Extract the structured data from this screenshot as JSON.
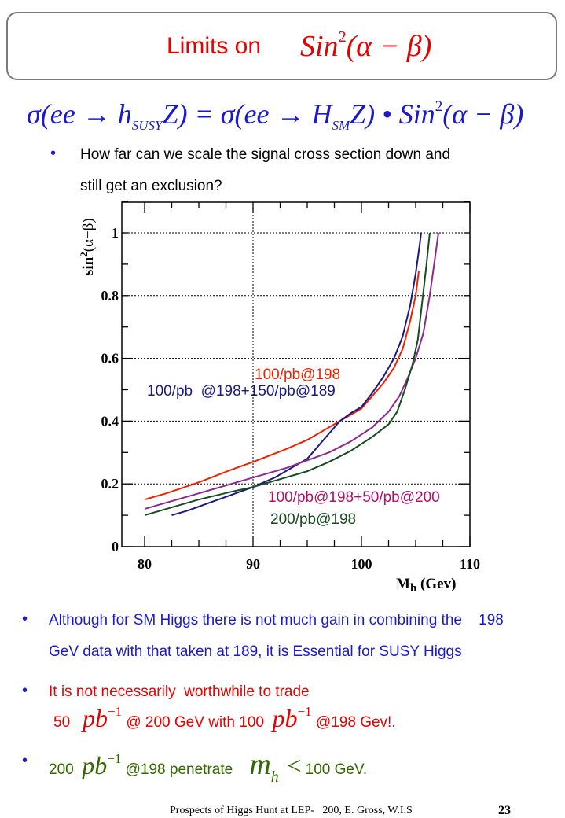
{
  "slide": {
    "title_text": "Limits on",
    "title_math": "Sin",
    "title_math_sup": "2",
    "title_math_arg": "(α − β)",
    "formula": {
      "part1": "σ(ee → h",
      "sub1": "SUSY",
      "part2": "Z) = σ(ee → H",
      "sub2": "SM",
      "part3": "Z) • Sin",
      "sup3": "2",
      "part4": "(α − β)"
    },
    "intro_bullet_line1": "How far can we scale the signal cross section down and",
    "intro_bullet_line2": "still get an exclusion?",
    "bullets": [
      {
        "line1": "Although for SM Higgs there is not much gain in combining the    198",
        "line2": "GeV data with that taken at  189, it is Essential for SUSY Higgs"
      },
      {
        "line1": "It is not necessarily  worthwhile to trade",
        "line2_a": "50",
        "line2_unit": "pb",
        "line2_unit_sup": "−1",
        "line2_b": "@ 200 GeV with  100",
        "line2_c": "@198 Gev!."
      },
      {
        "a": "200",
        "unit": "pb",
        "unit_sup": "−1",
        "b": "@198 penetrate",
        "mh": "m",
        "mh_sub": "h",
        "lt": "<",
        "c": "100 GeV."
      }
    ],
    "bullet_glyph": "•",
    "footer": "Prospects of Higgs Hunt at LEP-   200, E. Gross, W.I.S",
    "page_number": "23",
    "colors": {
      "title_red": "#e60000",
      "formula_blue": "#1a1acc",
      "bullet_green": "#336600"
    }
  },
  "chart_data": {
    "type": "line",
    "title": "",
    "xlabel": "M",
    "xlabel_sub": "h",
    "xlabel_unit": " (Gev)",
    "ylabel": "sin",
    "ylabel_sup": "2",
    "ylabel_arg": "(α−β)",
    "xlim": [
      78.5,
      110
    ],
    "ylim": [
      0,
      1.1
    ],
    "x_ticks": [
      80,
      90,
      100,
      110
    ],
    "x_tick_labels": [
      "80",
      "90",
      "100",
      "110"
    ],
    "y_ticks": [
      0,
      0.2,
      0.4,
      0.6,
      0.8,
      1
    ],
    "y_tick_labels": [
      "0",
      "0.2",
      "0.4",
      "0.6",
      "0.8",
      "1"
    ],
    "grid": {
      "x": [
        90
      ],
      "y": [
        0.2,
        0.4,
        0.6,
        0.8,
        1
      ]
    },
    "series": [
      {
        "name": "100/pb@198",
        "color": "#ee2200",
        "points": [
          [
            80,
            0.15
          ],
          [
            82,
            0.17
          ],
          [
            85,
            0.205
          ],
          [
            88,
            0.245
          ],
          [
            90,
            0.27
          ],
          [
            93,
            0.31
          ],
          [
            95,
            0.34
          ],
          [
            97,
            0.38
          ],
          [
            98,
            0.4
          ],
          [
            100,
            0.44
          ],
          [
            101,
            0.48
          ],
          [
            102,
            0.52
          ],
          [
            103,
            0.57
          ],
          [
            103.8,
            0.63
          ],
          [
            104.5,
            0.72
          ],
          [
            105,
            0.8
          ],
          [
            105.3,
            0.88
          ]
        ]
      },
      {
        "name": "100/pb @198+150/pb@189",
        "color": "#1a1a80",
        "points": [
          [
            82.5,
            0.1
          ],
          [
            84,
            0.115
          ],
          [
            86,
            0.14
          ],
          [
            88,
            0.165
          ],
          [
            90,
            0.19
          ],
          [
            92,
            0.22
          ],
          [
            94,
            0.26
          ],
          [
            95,
            0.28
          ],
          [
            96,
            0.32
          ],
          [
            97,
            0.36
          ],
          [
            98,
            0.4
          ],
          [
            99,
            0.425
          ],
          [
            100,
            0.445
          ],
          [
            101,
            0.49
          ],
          [
            102,
            0.54
          ],
          [
            103,
            0.6
          ],
          [
            103.8,
            0.67
          ],
          [
            104.5,
            0.77
          ],
          [
            105,
            0.87
          ],
          [
            105.4,
            0.97
          ],
          [
            105.5,
            1.0
          ]
        ]
      },
      {
        "name": "100/pb@198+50/pb@200",
        "color": "#8b2a8b",
        "points": [
          [
            80,
            0.12
          ],
          [
            82,
            0.14
          ],
          [
            85,
            0.17
          ],
          [
            88,
            0.2
          ],
          [
            90,
            0.22
          ],
          [
            93,
            0.25
          ],
          [
            95,
            0.275
          ],
          [
            97,
            0.3
          ],
          [
            99,
            0.335
          ],
          [
            101,
            0.38
          ],
          [
            102.5,
            0.43
          ],
          [
            103.5,
            0.48
          ],
          [
            104.3,
            0.54
          ],
          [
            105,
            0.6
          ],
          [
            105.7,
            0.68
          ],
          [
            106.3,
            0.8
          ],
          [
            106.7,
            0.9
          ],
          [
            107.1,
            1.0
          ]
        ]
      },
      {
        "name": "200/pb@198",
        "color": "#1a4a22",
        "points": [
          [
            80,
            0.1
          ],
          [
            82,
            0.12
          ],
          [
            85,
            0.15
          ],
          [
            88,
            0.175
          ],
          [
            90,
            0.19
          ],
          [
            93,
            0.22
          ],
          [
            95,
            0.24
          ],
          [
            97,
            0.27
          ],
          [
            99,
            0.305
          ],
          [
            101,
            0.35
          ],
          [
            102.5,
            0.39
          ],
          [
            103.3,
            0.43
          ],
          [
            104,
            0.5
          ],
          [
            104.7,
            0.58
          ],
          [
            105.2,
            0.66
          ],
          [
            105.6,
            0.78
          ],
          [
            106,
            0.9
          ],
          [
            106.3,
            1.0
          ]
        ]
      }
    ],
    "annotations": [
      {
        "text": "100/pb@198",
        "series": 0,
        "color": "#ee2200"
      },
      {
        "text": "100/pb  @198+150/pb@189",
        "series": 1,
        "color": "#1a1a80"
      },
      {
        "text": "100/pb@198+50/pb@200",
        "series": 2,
        "color": "#b0106a"
      },
      {
        "text": "200/pb@198",
        "series": 3,
        "color": "#1a4a22"
      }
    ]
  }
}
